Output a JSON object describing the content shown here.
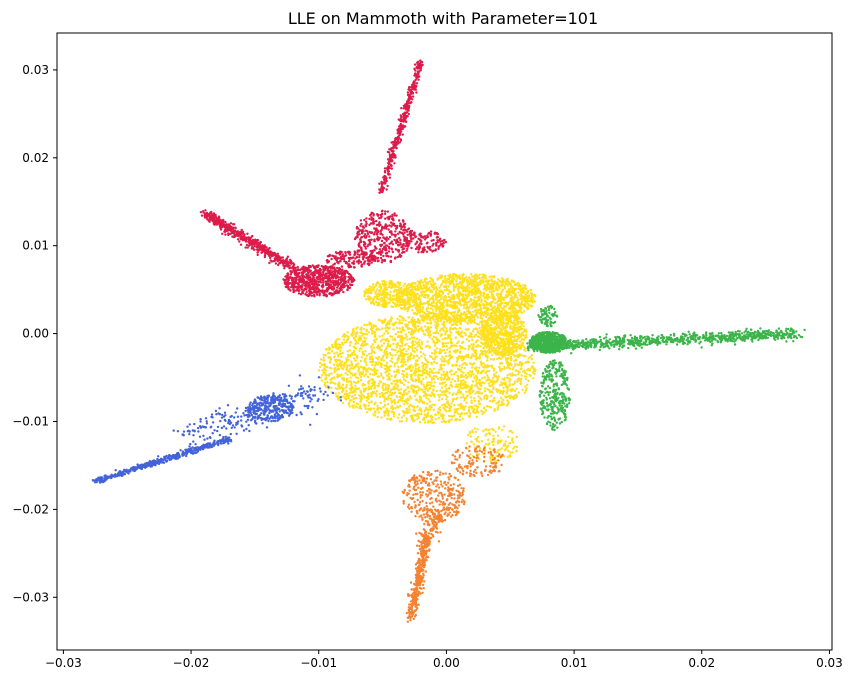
{
  "chart_data": {
    "type": "scatter",
    "title": "LLE on Mammoth with Parameter=101",
    "xlabel": "",
    "ylabel": "",
    "xlim": [
      -0.0305,
      0.0302
    ],
    "ylim": [
      -0.036,
      0.0342
    ],
    "x_ticks": [
      -0.03,
      -0.02,
      -0.01,
      0.0,
      0.01,
      0.02,
      0.03
    ],
    "x_tick_labels": [
      "−0.03",
      "−0.02",
      "−0.01",
      "0.00",
      "0.01",
      "0.02",
      "0.03"
    ],
    "y_ticks": [
      -0.03,
      -0.02,
      -0.01,
      0.0,
      0.01,
      0.02,
      0.03
    ],
    "y_tick_labels": [
      "−0.03",
      "−0.02",
      "−0.01",
      "0.00",
      "0.01",
      "0.02",
      "0.03"
    ],
    "grid": false,
    "legend": "none",
    "marker_size": 1.2,
    "series": [
      {
        "color": "#ffe01f",
        "regions": [
          {
            "shape": "ellipse",
            "cx": -0.0015,
            "cy": -0.004,
            "rx": 0.0085,
            "ry": 0.0062,
            "count": 2600
          },
          {
            "shape": "ellipse",
            "cx": 0.0015,
            "cy": 0.004,
            "rx": 0.0055,
            "ry": 0.0028,
            "count": 1500
          },
          {
            "shape": "ellipse",
            "cx": -0.0045,
            "cy": 0.0045,
            "rx": 0.002,
            "ry": 0.0015,
            "count": 300
          },
          {
            "shape": "ellipse",
            "cx": 0.0045,
            "cy": 0.0,
            "rx": 0.0018,
            "ry": 0.0025,
            "count": 500
          },
          {
            "shape": "ellipse",
            "cx": 0.0035,
            "cy": -0.0125,
            "rx": 0.0022,
            "ry": 0.0022,
            "count": 120
          }
        ]
      },
      {
        "color": "#dc1c4b",
        "regions": [
          {
            "shape": "line",
            "x1": -0.0051,
            "y1": 0.0161,
            "x2": -0.002,
            "y2": 0.031,
            "spread": 0.00015,
            "count": 400
          },
          {
            "shape": "line",
            "x1": -0.019,
            "y1": 0.0137,
            "x2": -0.012,
            "y2": 0.0075,
            "spread": 0.00025,
            "count": 500
          },
          {
            "shape": "ellipse",
            "cx": -0.01,
            "cy": 0.006,
            "rx": 0.0028,
            "ry": 0.0018,
            "count": 700
          },
          {
            "shape": "ellipse",
            "cx": -0.005,
            "cy": 0.011,
            "rx": 0.0022,
            "ry": 0.003,
            "count": 350
          },
          {
            "shape": "ellipse",
            "cx": -0.002,
            "cy": 0.0105,
            "rx": 0.002,
            "ry": 0.0013,
            "count": 150
          },
          {
            "shape": "ellipse",
            "cx": -0.0075,
            "cy": 0.0085,
            "rx": 0.002,
            "ry": 0.001,
            "count": 150
          }
        ]
      },
      {
        "color": "#3cb44b",
        "regions": [
          {
            "shape": "line",
            "x1": 0.0065,
            "y1": -0.0015,
            "x2": 0.0275,
            "y2": 0.0,
            "spread": 0.0003,
            "count": 900
          },
          {
            "shape": "ellipse",
            "cx": 0.008,
            "cy": -0.001,
            "rx": 0.0015,
            "ry": 0.0012,
            "count": 600
          },
          {
            "shape": "ellipse",
            "cx": 0.0085,
            "cy": -0.007,
            "rx": 0.0012,
            "ry": 0.004,
            "count": 300
          },
          {
            "shape": "ellipse",
            "cx": 0.008,
            "cy": 0.002,
            "rx": 0.0008,
            "ry": 0.0012,
            "count": 80
          }
        ]
      },
      {
        "color": "#4363d8",
        "regions": [
          {
            "shape": "line",
            "x1": -0.0275,
            "y1": -0.0168,
            "x2": -0.017,
            "y2": -0.012,
            "spread": 0.00015,
            "count": 450
          },
          {
            "shape": "line",
            "x1": -0.02,
            "y1": -0.0115,
            "x2": -0.0095,
            "y2": -0.0065,
            "spread": 0.0008,
            "count": 250
          },
          {
            "shape": "ellipse",
            "cx": -0.0138,
            "cy": -0.0085,
            "rx": 0.0018,
            "ry": 0.0015,
            "count": 250
          }
        ]
      },
      {
        "color": "#f58231",
        "regions": [
          {
            "shape": "line",
            "x1": -0.0028,
            "y1": -0.0325,
            "x2": -0.0015,
            "y2": -0.023,
            "spread": 0.0002,
            "count": 350
          },
          {
            "shape": "ellipse",
            "cx": -0.001,
            "cy": -0.0185,
            "rx": 0.0025,
            "ry": 0.003,
            "count": 300
          },
          {
            "shape": "ellipse",
            "cx": 0.0025,
            "cy": -0.0145,
            "rx": 0.0022,
            "ry": 0.0018,
            "count": 120
          },
          {
            "shape": "line",
            "x1": -0.0015,
            "y1": -0.023,
            "x2": -0.0005,
            "y2": -0.02,
            "spread": 0.0004,
            "count": 80
          }
        ]
      }
    ]
  }
}
